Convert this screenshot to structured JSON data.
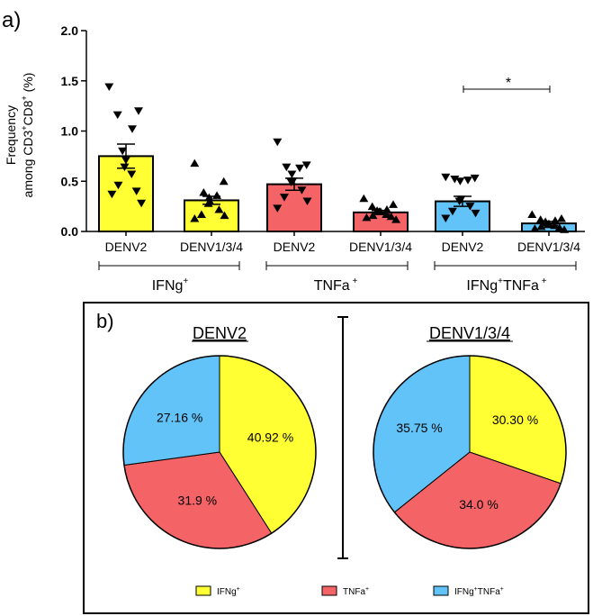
{
  "panel_a": {
    "label": "a)",
    "ylabel_line1": "Frequency",
    "ylabel_line2_pre": "among CD3",
    "ylabel_sup1": "+",
    "ylabel_mid": "CD8",
    "ylabel_sup2": "+",
    "ylabel_post": " (%)",
    "yticks": [
      "0.0",
      "0.5",
      "1.0",
      "1.5",
      "2.0"
    ],
    "categories": [
      "DENV2",
      "DENV1/3/4",
      "DENV2",
      "DENV1/3/4",
      "DENV2",
      "DENV1/3/4"
    ],
    "groups": [
      {
        "base": "IFNg",
        "sup": "+",
        "base2": "",
        "sup2": ""
      },
      {
        "base": "TNFa",
        "sup": " +",
        "base2": "",
        "sup2": ""
      },
      {
        "base": "IFNg",
        "sup": "+",
        "base2": "TNFa",
        "sup2": " +"
      }
    ],
    "significance": "*"
  },
  "panel_b": {
    "label": "b)",
    "legend": [
      {
        "base": "IFNg",
        "sup": "+",
        "base2": "",
        "sup2": ""
      },
      {
        "base": "TNFa",
        "sup": "+",
        "base2": "",
        "sup2": ""
      },
      {
        "base": "IFNg",
        "sup": "+",
        "base2": "TNFa",
        "sup2": "+"
      }
    ]
  },
  "colors": {
    "ifng": "#ffff33",
    "tnfa": "#f46467",
    "both": "#62c3f8"
  },
  "chart_data": [
    {
      "type": "bar",
      "title": "",
      "xlabel": "",
      "ylabel": "Frequency among CD3+CD8+ (%)",
      "ylim": [
        0,
        2.0
      ],
      "categories": [
        "DENV2",
        "DENV1/3/4",
        "DENV2",
        "DENV1/3/4",
        "DENV2",
        "DENV1/3/4"
      ],
      "group_labels": [
        "IFNg+",
        "TNFa+",
        "IFNg+TNFa+"
      ],
      "values": [
        0.75,
        0.31,
        0.47,
        0.19,
        0.3,
        0.08
      ],
      "sem": [
        0.12,
        0.04,
        0.06,
        0.02,
        0.05,
        0.02
      ],
      "bar_colors": [
        "#ffff33",
        "#ffff33",
        "#f46467",
        "#f46467",
        "#62c3f8",
        "#62c3f8"
      ],
      "points": [
        [
          1.44,
          1.2,
          1.16,
          1.02,
          0.8,
          0.71,
          0.64,
          0.57,
          0.46,
          0.4,
          0.37,
          0.28
        ],
        [
          0.68,
          0.5,
          0.39,
          0.36,
          0.34,
          0.3,
          0.28,
          0.22,
          0.17,
          0.16,
          0.13
        ],
        [
          0.89,
          0.66,
          0.64,
          0.63,
          0.57,
          0.5,
          0.49,
          0.41,
          0.34,
          0.3,
          0.23
        ],
        [
          0.33,
          0.27,
          0.25,
          0.22,
          0.21,
          0.2,
          0.2,
          0.17,
          0.16,
          0.15,
          0.14,
          0.12
        ],
        [
          0.54,
          0.53,
          0.52,
          0.51,
          0.5,
          0.32,
          0.3,
          0.25,
          0.2,
          0.18,
          0.13
        ],
        [
          0.17,
          0.13,
          0.12,
          0.11,
          0.1,
          0.08,
          0.07,
          0.06,
          0.05,
          0.04,
          0.03,
          0.02
        ]
      ],
      "annotations": [
        "*"
      ]
    },
    {
      "type": "pie",
      "title": "DENV2",
      "labels": [
        "IFNg+",
        "TNFa+",
        "IFNg+TNFa+"
      ],
      "values": [
        40.92,
        31.9,
        27.16
      ],
      "value_labels": [
        "40.92 %",
        "31.9 %",
        "27.16 %"
      ],
      "colors": [
        "#ffff33",
        "#f46467",
        "#62c3f8"
      ]
    },
    {
      "type": "pie",
      "title": "DENV1/3/4",
      "labels": [
        "IFNg+",
        "TNFa+",
        "IFNg+TNFa+"
      ],
      "values": [
        30.3,
        34.0,
        35.75
      ],
      "value_labels": [
        "30.30 %",
        "34.0 %",
        "35.75 %"
      ],
      "colors": [
        "#ffff33",
        "#f46467",
        "#62c3f8"
      ]
    }
  ]
}
